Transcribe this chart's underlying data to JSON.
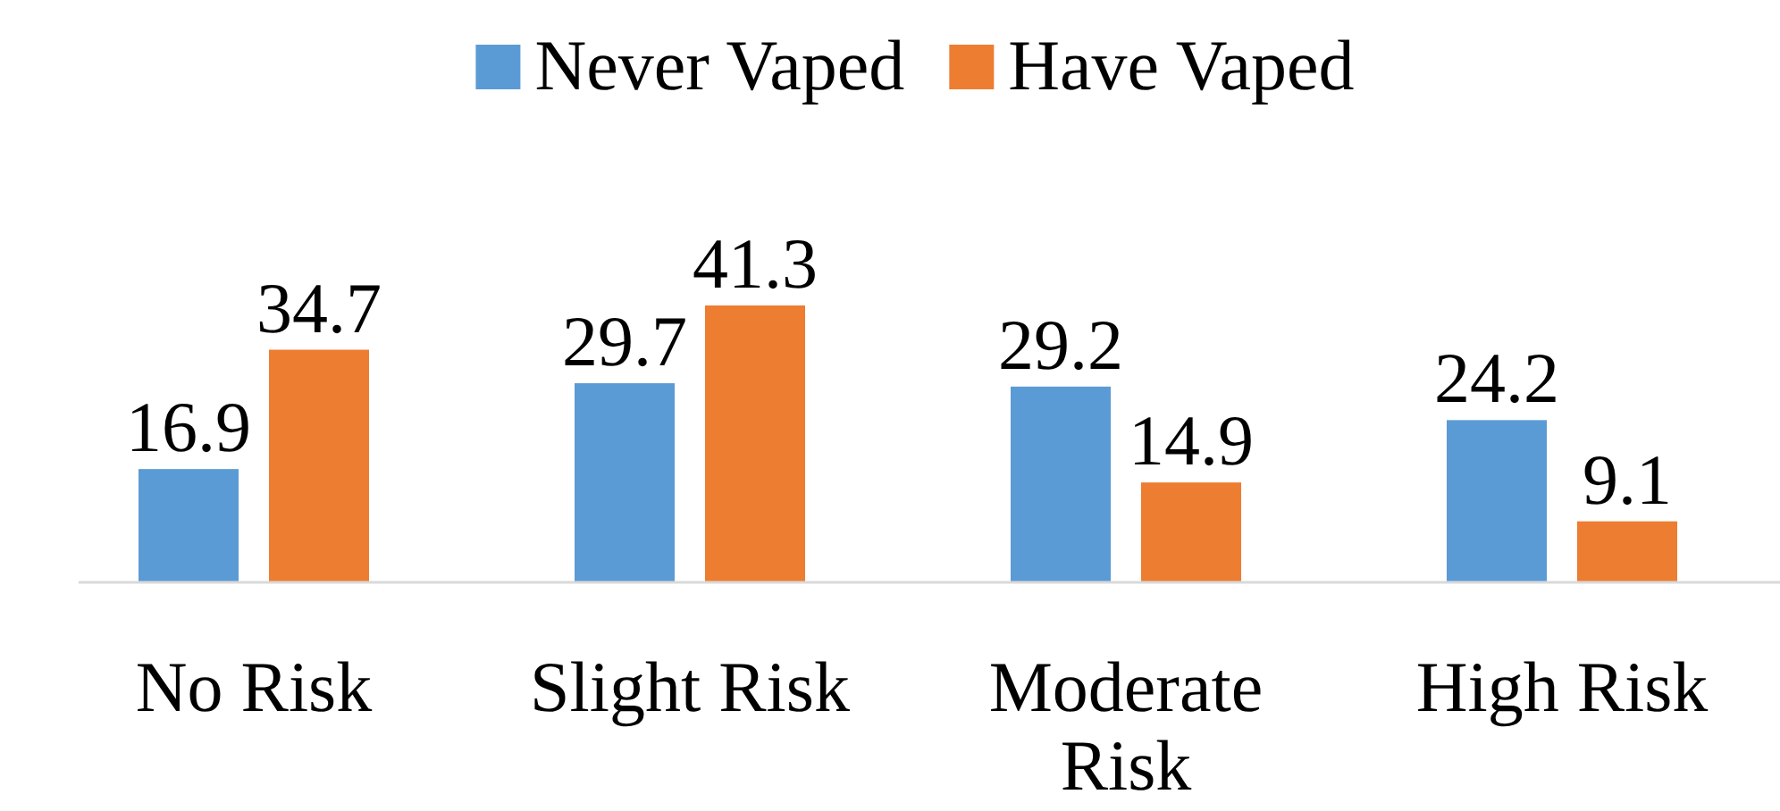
{
  "chart_data": {
    "type": "bar",
    "categories": [
      "No Risk",
      "Slight Risk",
      "Moderate Risk",
      "High Risk"
    ],
    "series": [
      {
        "name": "Never Vaped",
        "color": "#5b9bd5",
        "values": [
          16.9,
          29.7,
          29.2,
          24.2
        ]
      },
      {
        "name": "Have Vaped",
        "color": "#ed7d31",
        "values": [
          34.7,
          41.3,
          14.9,
          9.1
        ]
      }
    ],
    "data_labels": true,
    "legend": "top"
  }
}
